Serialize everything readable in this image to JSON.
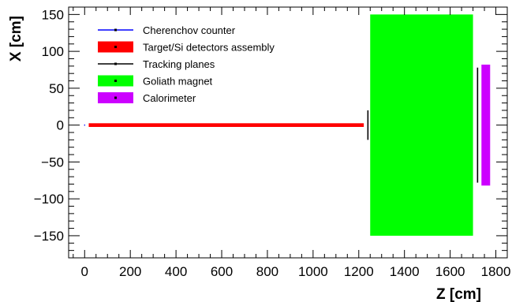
{
  "chart_data": {
    "type": "layout-plot",
    "xlabel": "Z [cm]",
    "ylabel": "X [cm]",
    "xlim": [
      -70,
      1850
    ],
    "ylim": [
      -180,
      160
    ],
    "xticks": [
      0,
      200,
      400,
      600,
      800,
      1000,
      1200,
      1400,
      1600,
      1800
    ],
    "yticks": [
      -150,
      -100,
      -50,
      0,
      50,
      100,
      150
    ],
    "legend": {
      "placement": "top-left",
      "entries": [
        {
          "label": "Cherenchov counter",
          "color": "#0000ff",
          "style": "line"
        },
        {
          "label": "Target/Si detectors assembly",
          "color": "#ff0000",
          "style": "box"
        },
        {
          "label": "Tracking planes",
          "color": "#000000",
          "style": "line"
        },
        {
          "label": "Goliath magnet",
          "color": "#00ff00",
          "style": "box"
        },
        {
          "label": "Calorimeter",
          "color": "#cc00ff",
          "style": "box"
        }
      ]
    },
    "elements": [
      {
        "name": "Cherenchov counter",
        "type": "segment",
        "z": [
          -2,
          2
        ],
        "x": [
          0,
          0
        ],
        "color": "#0000ff"
      },
      {
        "name": "Target/Si detectors assembly",
        "type": "rect",
        "z": [
          18,
          1222
        ],
        "x": [
          -2.5,
          2.5
        ],
        "color": "#ff0000"
      },
      {
        "name": "Tracking planes",
        "type": "segment",
        "z": [
          1240,
          1240
        ],
        "x": [
          -20,
          20
        ],
        "color": "#000000"
      },
      {
        "name": "Tracking planes",
        "type": "segment",
        "z": [
          1720,
          1720
        ],
        "x": [
          -78,
          78
        ],
        "color": "#000000"
      },
      {
        "name": "Goliath magnet",
        "type": "rect",
        "z": [
          1250,
          1700
        ],
        "x": [
          -150,
          150
        ],
        "color": "#00ff00"
      },
      {
        "name": "Calorimeter",
        "type": "rect",
        "z": [
          1737,
          1775
        ],
        "x": [
          -82,
          82
        ],
        "color": "#cc00ff"
      }
    ]
  }
}
